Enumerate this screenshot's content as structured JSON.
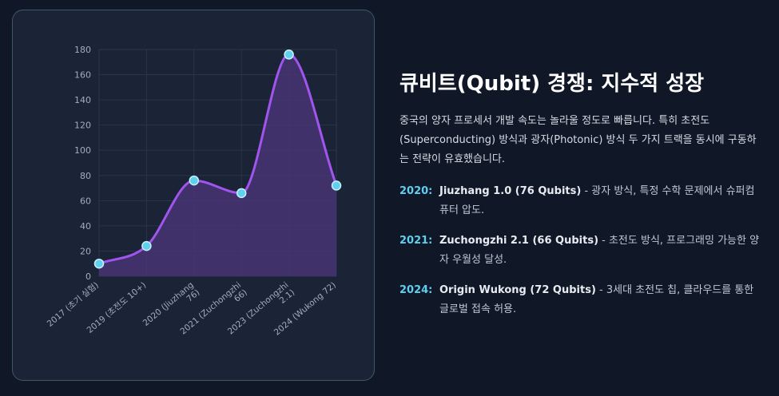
{
  "chart_data": {
    "type": "area",
    "categories": [
      "2017 (초기 실험)",
      "2019 (초전도 10+)",
      "2020 (Jiuzhang 76)",
      "2021 (Zuchongzhi 66)",
      "2023 (Zuchongzhi 2.1)",
      "2024 (Wukong 72)"
    ],
    "category_lines": [
      [
        "2017 (초기 실험)"
      ],
      [
        "2019 (초전도 10+)"
      ],
      [
        "2020 (Jiuzhang",
        "76)"
      ],
      [
        "2021 (Zuchongzhi",
        "66)"
      ],
      [
        "2023 (Zuchongzhi",
        "2.1)"
      ],
      [
        "2024 (Wukong 72)"
      ]
    ],
    "series": [
      {
        "values": [
          10,
          24,
          76,
          66,
          176,
          72
        ]
      }
    ],
    "ylim": [
      0,
      180
    ],
    "yticks": [
      0,
      20,
      40,
      60,
      80,
      100,
      120,
      140,
      160,
      180
    ],
    "grid": true,
    "curve": "smooth",
    "colors": {
      "line": "#a155ee",
      "fill": "#4a3478",
      "point": "#5fd1ee",
      "point_stroke": "#c8f0fb"
    }
  },
  "panel": {
    "title": "큐비트(Qubit) 경쟁: 지수적 성장",
    "description": "중국의 양자 프로세서 개발 속도는 놀라울 정도로 빠릅니다. 특히 초전도(Superconducting) 방식과 광자(Photonic) 방식 두 가지 트랙을 동시에 구동하는 전략이 유효했습니다.",
    "milestones": [
      {
        "year": "2020:",
        "name": "Jiuzhang 1.0 (76 Qubits)",
        "text": " - 광자 방식, 특정 수학 문제에서 슈퍼컴퓨터 압도."
      },
      {
        "year": "2021:",
        "name": "Zuchongzhi 2.1 (66 Qubits)",
        "text": " - 초전도 방식, 프로그래밍 가능한 양자 우월성 달성."
      },
      {
        "year": "2024:",
        "name": "Origin Wukong (72 Qubits)",
        "text": " - 3세대 초전도 칩, 클라우드를 통한 글로벌 접속 허용."
      }
    ],
    "accent_color": "#5ecfee"
  }
}
